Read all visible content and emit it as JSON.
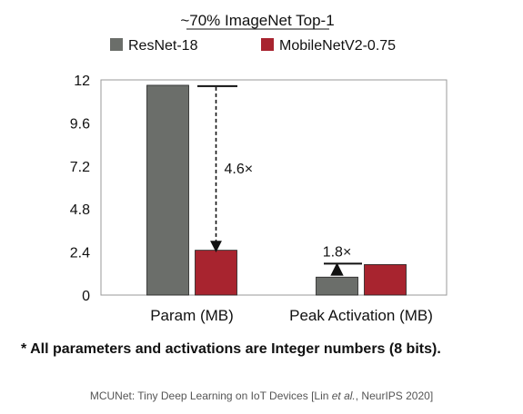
{
  "chart_data": {
    "type": "bar",
    "title": "~70% ImageNet Top-1",
    "categories": [
      "Param (MB)",
      "Peak Activation (MB)"
    ],
    "series": [
      {
        "name": "ResNet-18",
        "values": [
          11.7,
          1.0
        ],
        "color": "#6b6e6a"
      },
      {
        "name": "MobileNetV2-0.75",
        "values": [
          2.5,
          1.7
        ],
        "color": "#a8242f"
      }
    ],
    "yticks": [
      "0",
      "2.4",
      "4.8",
      "7.2",
      "9.6",
      "12"
    ],
    "ylim": [
      0,
      12
    ],
    "grid": false,
    "legend": "top",
    "annotations": [
      {
        "text": "4.6×",
        "category": "Param (MB)",
        "from": 11.7,
        "to": 2.5,
        "style": "dashed-arrow-down"
      },
      {
        "text": "1.8×",
        "category": "Peak Activation (MB)",
        "from": 1.0,
        "to": 1.7,
        "style": "solid-arrow-up"
      }
    ]
  },
  "footnote": "* All parameters and activations are Integer numbers (8 bits).",
  "citation": {
    "prefix": "MCUNet: Tiny Deep Learning on IoT Devices [Lin ",
    "italic": "et al.",
    "suffix": ", NeurIPS 2020]"
  }
}
